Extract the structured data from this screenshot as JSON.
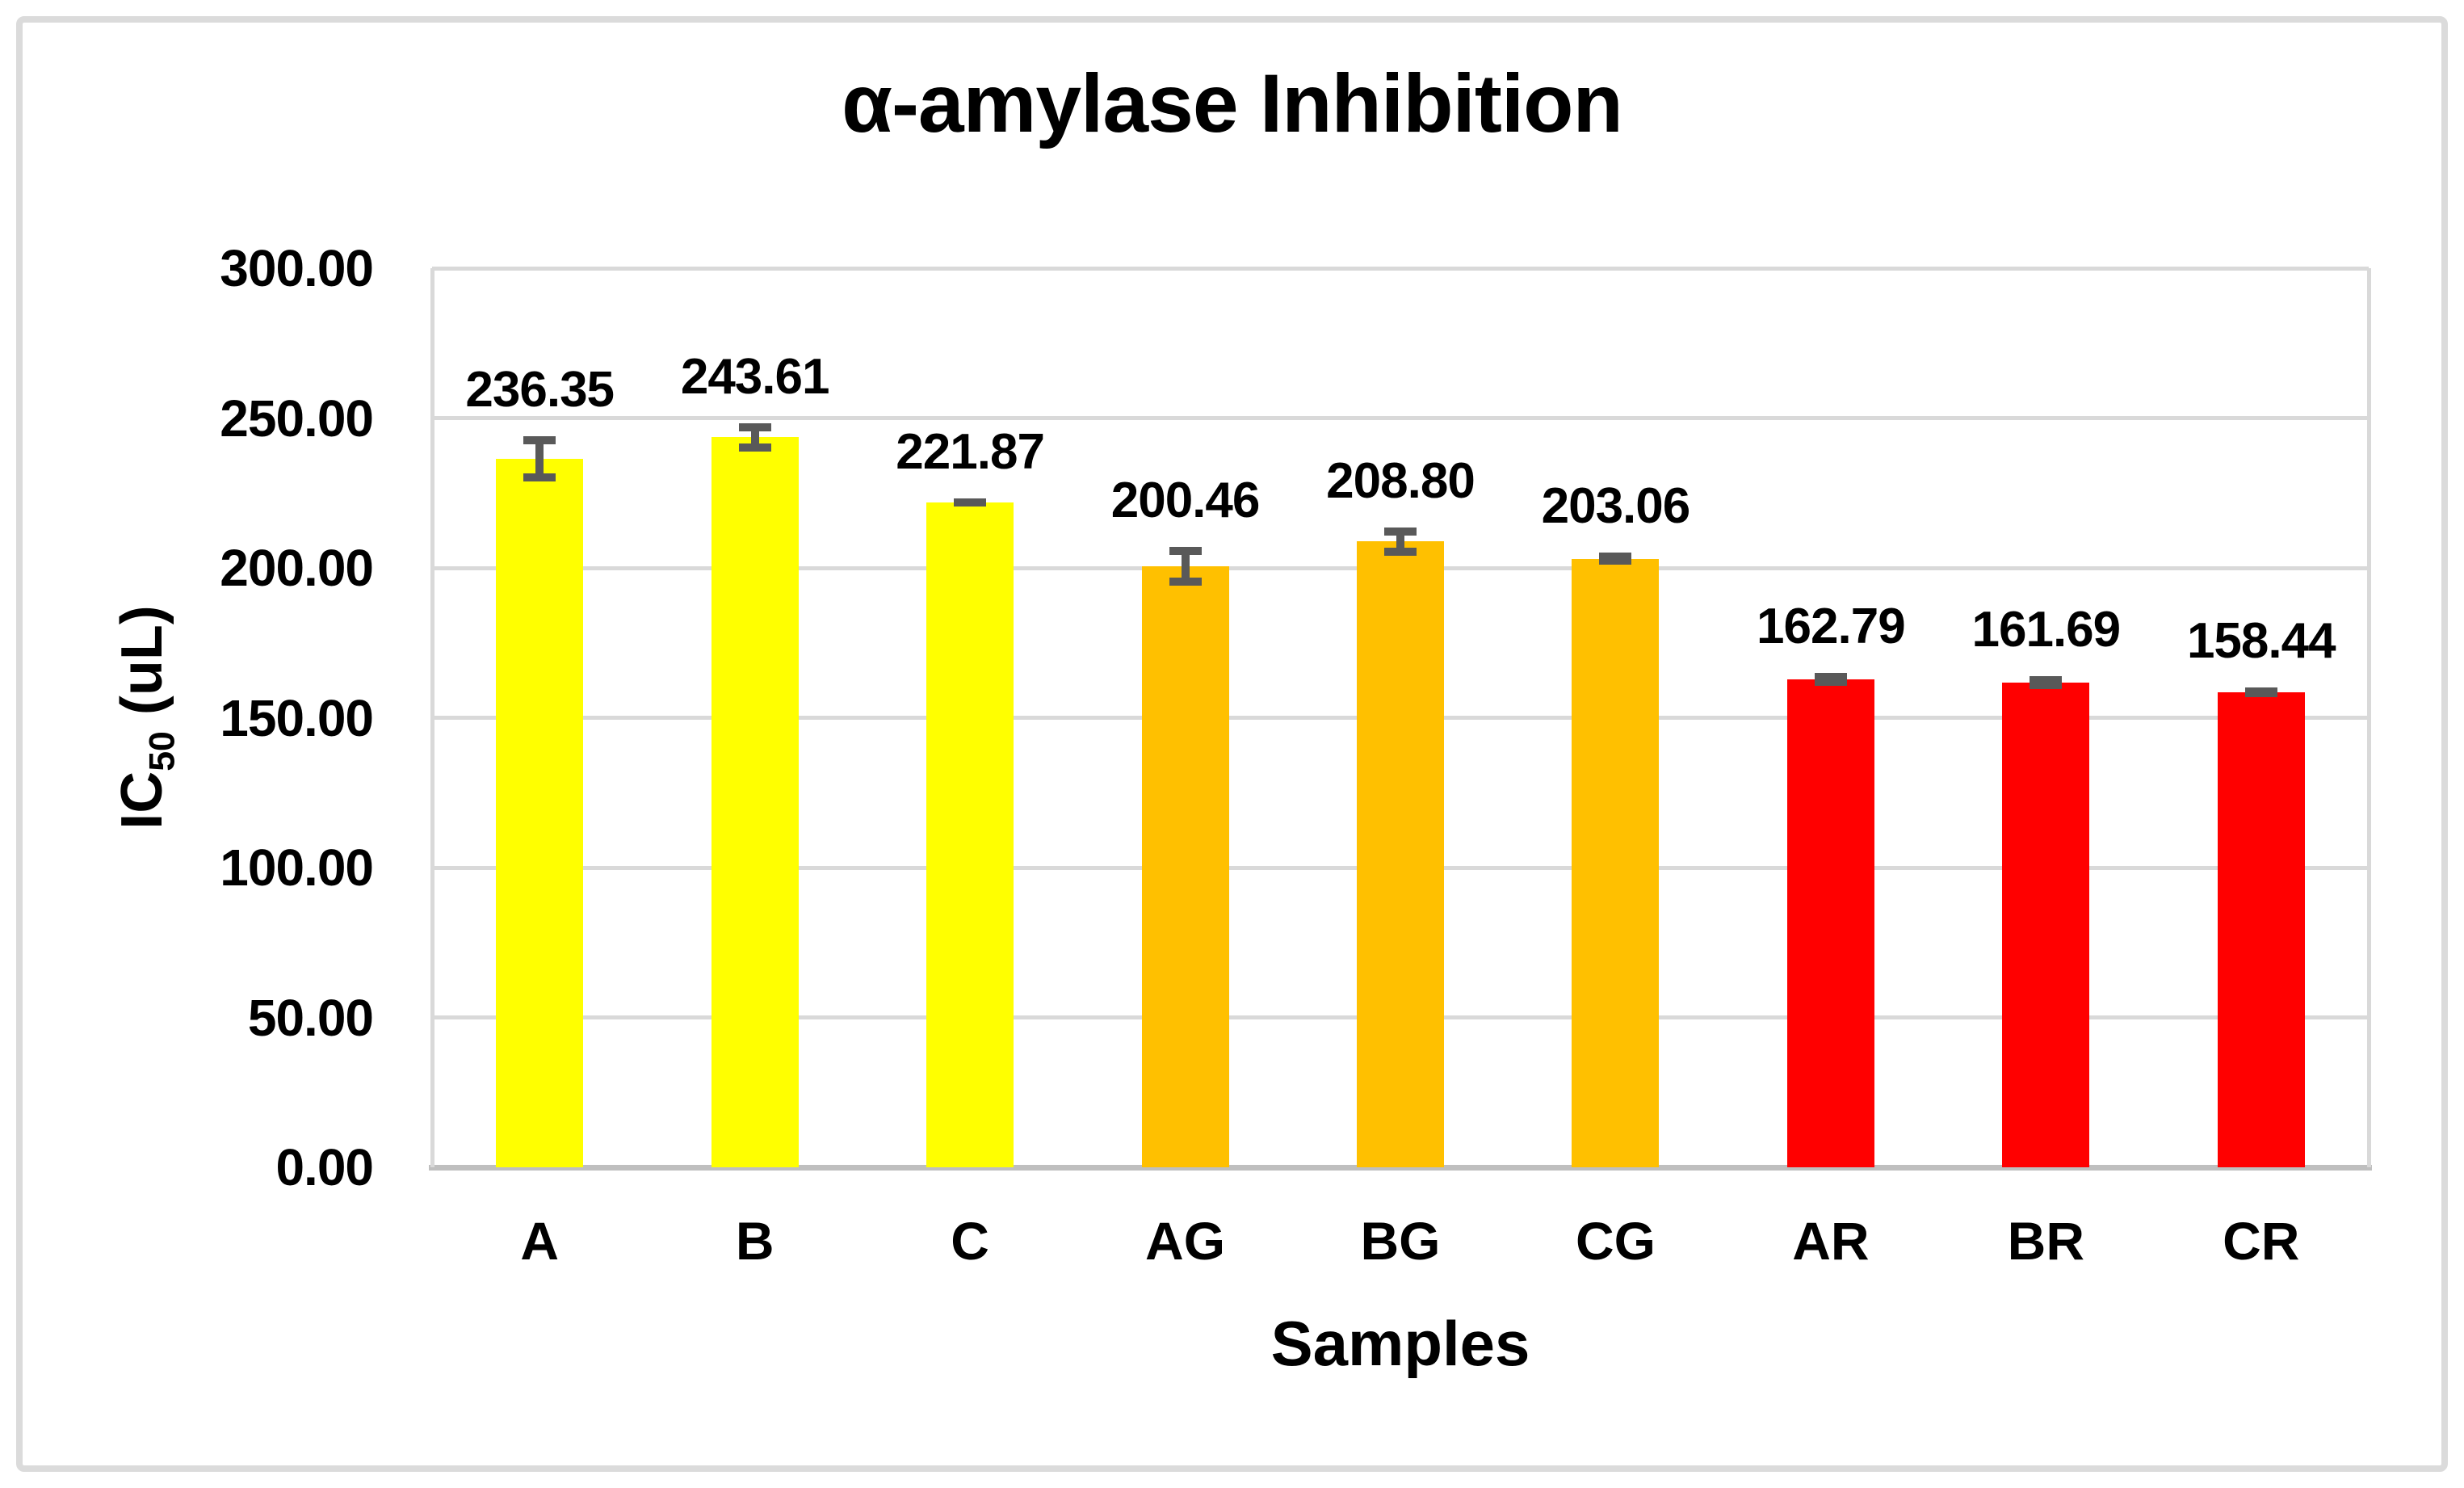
{
  "chart_data": {
    "type": "bar",
    "title": "α-amylase Inhibition",
    "xlabel": "Samples",
    "ylabel": "IC50 (uL)",
    "ylabel_parts": {
      "prefix": "IC",
      "sub": "50",
      "suffix": " (uL)"
    },
    "categories": [
      "A",
      "B",
      "C",
      "AG",
      "BG",
      "CG",
      "AR",
      "BR",
      "CR"
    ],
    "values": [
      236.35,
      243.61,
      221.87,
      200.46,
      208.8,
      203.06,
      162.79,
      161.69,
      158.44
    ],
    "data_labels": [
      "236.35",
      "243.61",
      "221.87",
      "200.46",
      "208.80",
      "203.06",
      "162.79",
      "161.69",
      "158.44"
    ],
    "errors": [
      7.6,
      4.7,
      1.4,
      6.5,
      4.8,
      2.0,
      2.2,
      2.2,
      1.6
    ],
    "bar_colors": [
      "#FFFF00",
      "#FFFF00",
      "#FFFF00",
      "#FFC000",
      "#FFC000",
      "#FFC000",
      "#FF0000",
      "#FF0000",
      "#FF0000"
    ],
    "ylim": [
      0,
      300
    ],
    "ytick_step": 50,
    "ytick_labels": [
      "0.00",
      "50.00",
      "100.00",
      "150.00",
      "200.00",
      "250.00",
      "300.00"
    ],
    "grid": true,
    "legend": false,
    "colors": {
      "error_bar": "#595959",
      "gridline": "#D9D9D9",
      "axis_line": "#BFBFBF",
      "frame_border": "#DBDBDB",
      "text": "#000000"
    }
  }
}
